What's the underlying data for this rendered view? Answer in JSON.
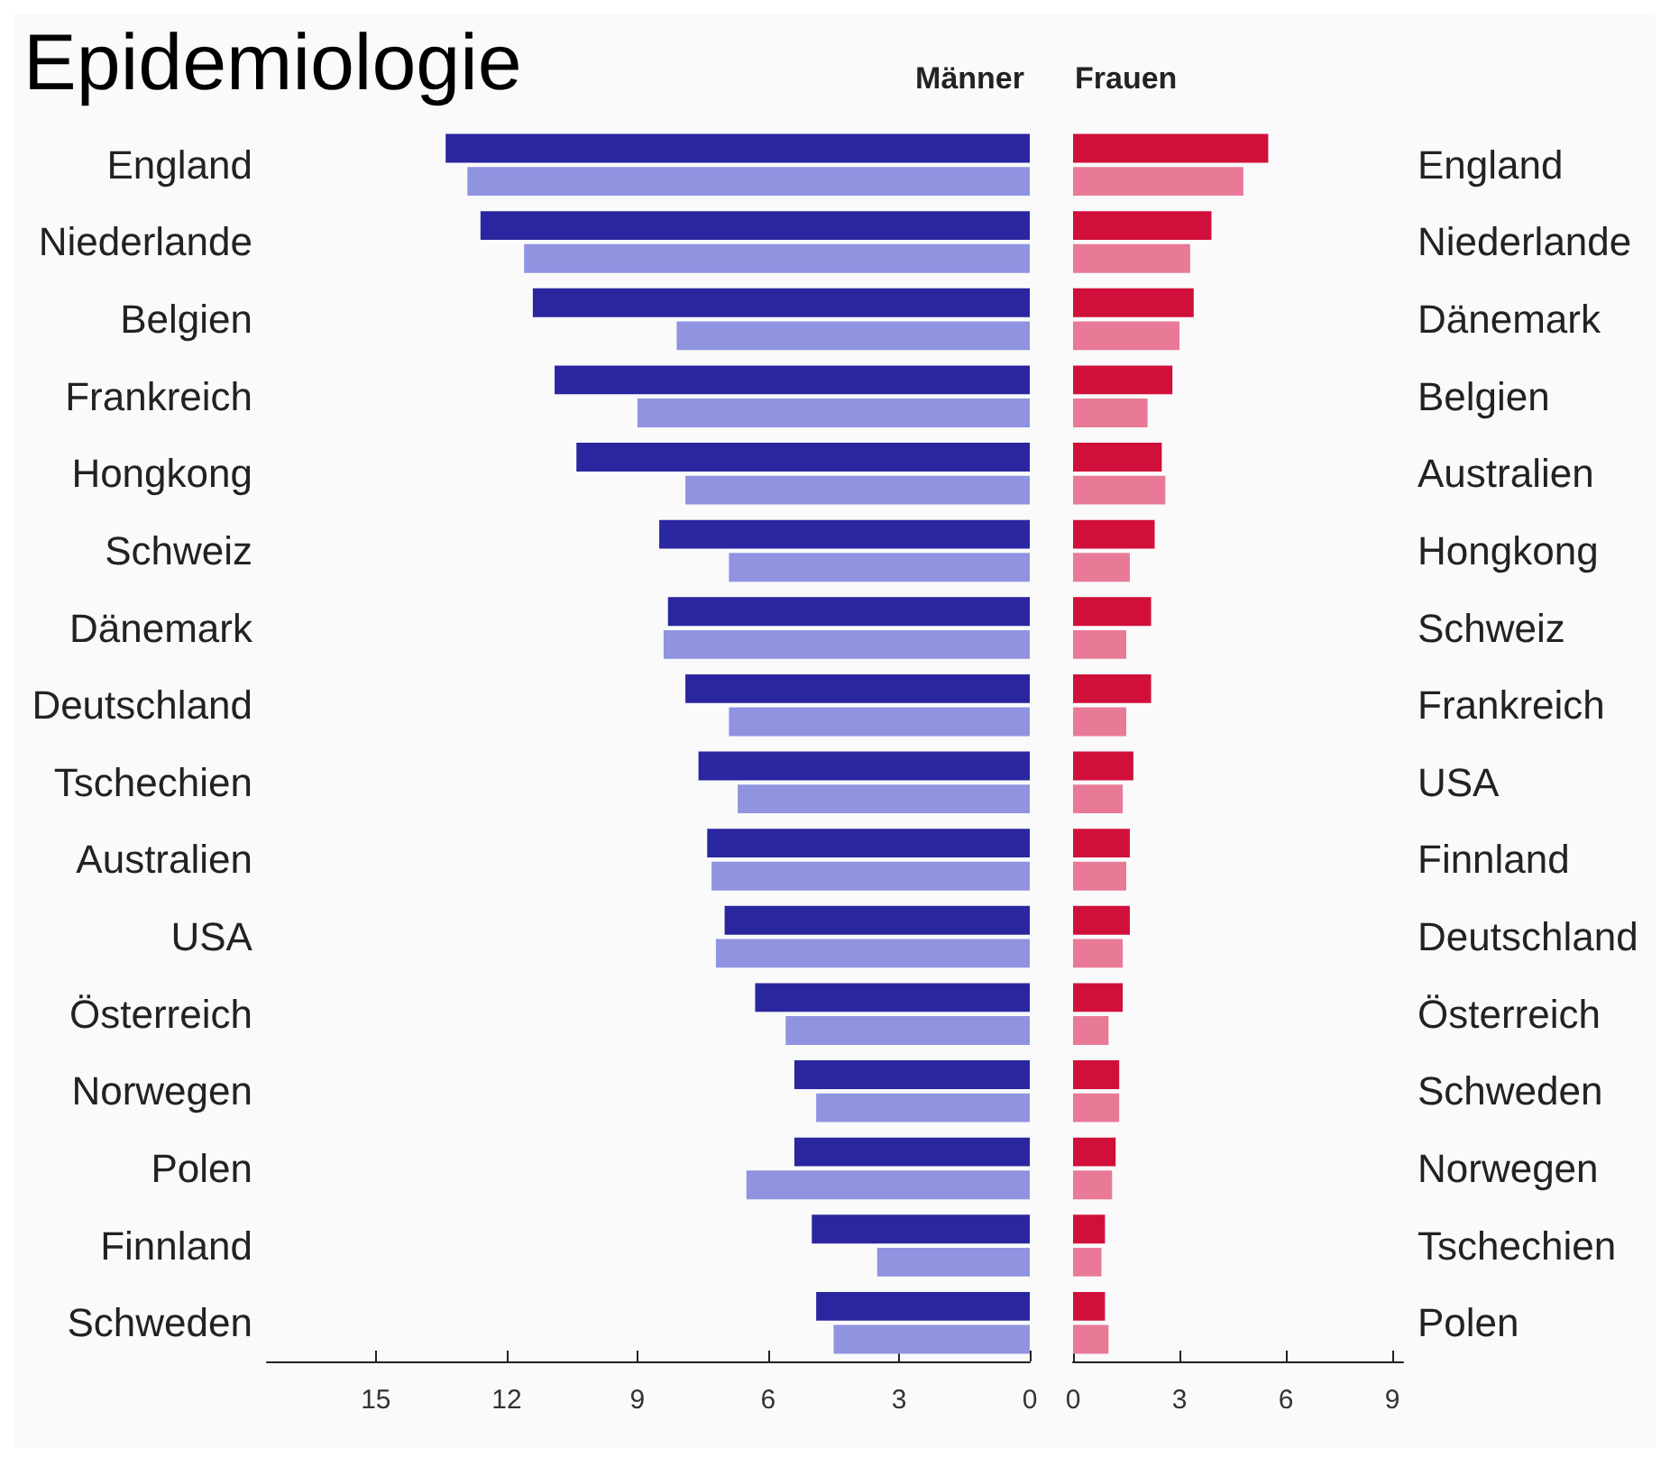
{
  "chart_data": [
    {
      "type": "bar",
      "title": "Epidemiologie",
      "subtitle": "Männer",
      "orientation": "horizontal",
      "categories": [
        "England",
        "Niederlande",
        "Belgien",
        "Frankreich",
        "Hongkong",
        "Schweiz",
        "Dänemark",
        "Deutschland",
        "Tschechien",
        "Australien",
        "USA",
        "Österreich",
        "Norwegen",
        "Polen",
        "Finnland",
        "Schweden"
      ],
      "series": [
        {
          "color": "#2a26a0",
          "values": [
            13.4,
            12.6,
            11.4,
            10.9,
            10.4,
            8.5,
            8.3,
            7.9,
            7.6,
            7.4,
            7.0,
            6.3,
            5.4,
            5.4,
            5.0,
            4.9
          ]
        },
        {
          "color": "#8f93e0",
          "values": [
            12.9,
            11.6,
            8.1,
            9.0,
            7.9,
            6.9,
            8.4,
            6.9,
            6.7,
            7.3,
            7.2,
            5.6,
            4.9,
            6.5,
            3.5,
            4.5
          ]
        }
      ],
      "xlim": [
        17.5,
        0
      ],
      "xticks": [
        15,
        12,
        9,
        6,
        3,
        0
      ]
    },
    {
      "type": "bar",
      "subtitle": "Frauen",
      "orientation": "horizontal",
      "categories": [
        "England",
        "Niederlande",
        "Dänemark",
        "Belgien",
        "Australien",
        "Hongkong",
        "Schweiz",
        "Frankreich",
        "USA",
        "Finnland",
        "Deutschland",
        "Österreich",
        "Schweden",
        "Norwegen",
        "Tschechien",
        "Polen"
      ],
      "series": [
        {
          "color": "#d0103a",
          "values": [
            5.5,
            3.9,
            3.4,
            2.8,
            2.5,
            2.3,
            2.2,
            2.2,
            1.7,
            1.6,
            1.6,
            1.4,
            1.3,
            1.2,
            0.9,
            0.9
          ]
        },
        {
          "color": "#e87a98",
          "values": [
            4.8,
            3.3,
            3.0,
            2.1,
            2.6,
            1.6,
            1.5,
            1.5,
            1.4,
            1.5,
            1.4,
            1.0,
            1.3,
            1.1,
            0.8,
            1.0
          ]
        }
      ],
      "xlim": [
        0,
        9.3
      ],
      "xticks": [
        0,
        3,
        6,
        9
      ]
    }
  ]
}
